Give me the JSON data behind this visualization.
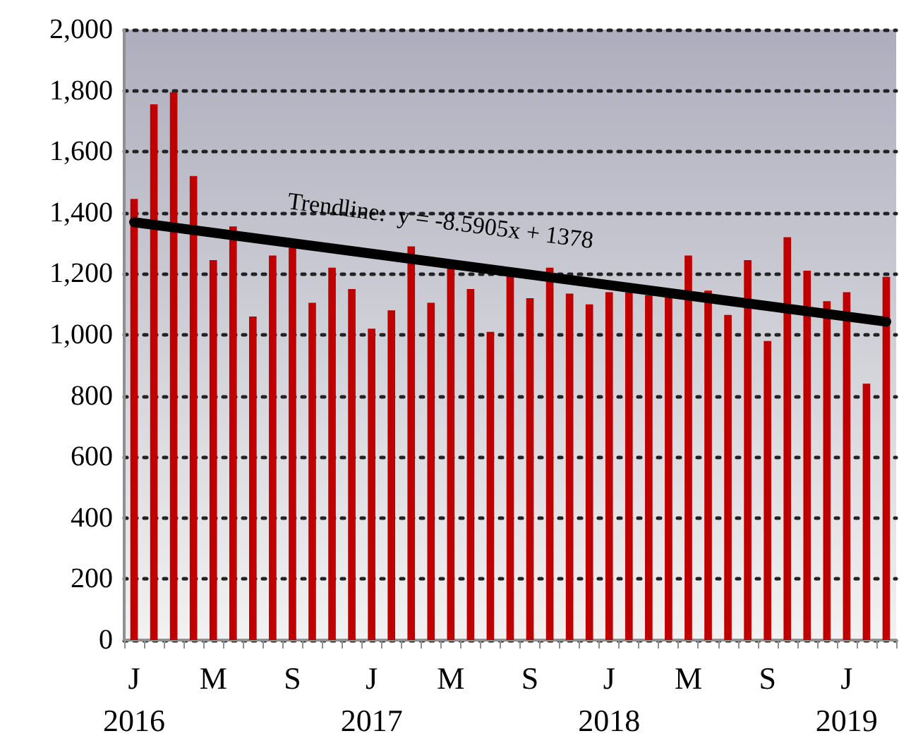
{
  "chart_data": {
    "type": "bar",
    "categories": [
      "J\n2016",
      null,
      null,
      null,
      "M",
      null,
      null,
      null,
      "S",
      null,
      null,
      null,
      "J\n2017",
      null,
      null,
      null,
      "M",
      null,
      null,
      null,
      "S",
      null,
      null,
      null,
      "J\n2018",
      null,
      null,
      null,
      "M",
      null,
      null,
      null,
      "S",
      null,
      null,
      null,
      "J\n2019",
      null,
      null
    ],
    "series": [
      {
        "color": "#c00000",
        "values": [
          1445,
          1755,
          1795,
          1520,
          1245,
          1355,
          1060,
          1260,
          1285,
          1105,
          1220,
          1150,
          1020,
          1080,
          1290,
          1105,
          1220,
          1150,
          1010,
          1220,
          1120,
          1220,
          1135,
          1100,
          1140,
          1140,
          1130,
          1130,
          1260,
          1145,
          1065,
          1245,
          980,
          1320,
          1210,
          1110,
          1140,
          840,
          1190
        ]
      },
      {
        "type": "line",
        "color": "#000000",
        "values": [
          1369,
          null,
          null,
          null,
          null,
          null,
          null,
          null,
          null,
          null,
          null,
          null,
          null,
          null,
          null,
          null,
          null,
          null,
          null,
          null,
          null,
          null,
          null,
          null,
          null,
          null,
          null,
          null,
          null,
          null,
          null,
          null,
          null,
          null,
          null,
          null,
          null,
          null,
          1043
        ]
      }
    ],
    "annotations": [
      "Trendline:  y = -8.5905x + 1378"
    ],
    "ylim": [
      0,
      2000
    ],
    "yticks": [
      0,
      200,
      400,
      600,
      800,
      {
        "value": 1000,
        "label": "1,000"
      },
      {
        "value": 1200,
        "label": "1,200"
      },
      {
        "value": 1400,
        "label": "1,400"
      },
      {
        "value": 1600,
        "label": "1,600"
      },
      {
        "value": 1800,
        "label": "1,800"
      },
      {
        "value": 2000,
        "label": "2,000"
      }
    ],
    "grid": "y"
  }
}
